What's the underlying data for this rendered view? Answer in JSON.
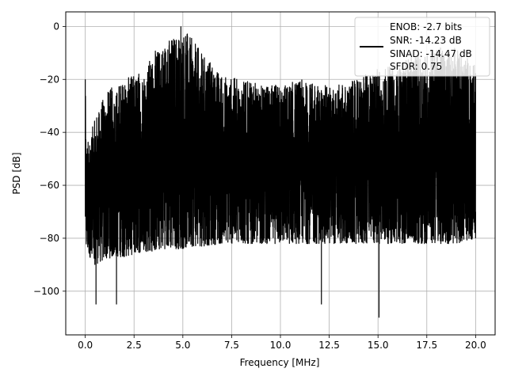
{
  "chart_data": {
    "type": "line",
    "title": "",
    "xlabel": "Frequency [MHz]",
    "ylabel": "PSD [dB]",
    "xlim": [
      -1.0,
      21.0
    ],
    "ylim": [
      -116.5,
      5.5
    ],
    "x_ticks": [
      0.0,
      2.5,
      5.0,
      7.5,
      10.0,
      12.5,
      15.0,
      17.5,
      20.0
    ],
    "x_tick_labels": [
      "0.0",
      "2.5",
      "5.0",
      "7.5",
      "10.0",
      "12.5",
      "15.0",
      "17.5",
      "20.0"
    ],
    "y_ticks": [
      0,
      -20,
      -40,
      -60,
      -80,
      -100
    ],
    "y_tick_labels": [
      "0",
      "−20",
      "−40",
      "−60",
      "−80",
      "−100"
    ],
    "grid": true,
    "legend_position": "top-right",
    "legend": {
      "lines": [
        "ENOB: -2.7 bits",
        "SNR: -14.23 dB",
        "SINAD: -14.47 dB",
        "SFDR: 0.75"
      ]
    },
    "series_color": "#000000",
    "envelope": {
      "x": [
        0.0,
        0.05,
        0.5,
        1.0,
        1.5,
        2.0,
        2.5,
        3.0,
        3.5,
        4.0,
        4.5,
        5.0,
        5.5,
        6.0,
        7.0,
        8.0,
        9.0,
        10.0,
        11.0,
        12.0,
        13.0,
        14.0,
        15.0,
        16.0,
        17.0,
        18.0,
        19.0,
        20.0
      ],
      "upper": [
        -20,
        -45,
        -35,
        -25,
        -22,
        -20,
        -18,
        -15,
        -10,
        -5,
        -3,
        0,
        -5,
        -10,
        -18,
        -20,
        -22,
        -22,
        -20,
        -22,
        -22,
        -20,
        -15,
        -15,
        -10,
        -8,
        -8,
        -15
      ],
      "lower": [
        -80,
        -85,
        -90,
        -88,
        -87,
        -87,
        -86,
        -85,
        -85,
        -84,
        -84,
        -84,
        -83,
        -83,
        -82,
        -82,
        -82,
        -82,
        -82,
        -82,
        -82,
        -82,
        -82,
        -82,
        -82,
        -82,
        -82,
        -80
      ]
    },
    "notable_points": [
      {
        "x": 0.0,
        "y": -20
      },
      {
        "x": 4.9,
        "y": 0
      },
      {
        "x": 0.55,
        "y": -105
      },
      {
        "x": 1.6,
        "y": -105
      },
      {
        "x": 12.1,
        "y": -105
      },
      {
        "x": 15.05,
        "y": -110
      },
      {
        "x": 20.0,
        "y": -80
      }
    ]
  }
}
